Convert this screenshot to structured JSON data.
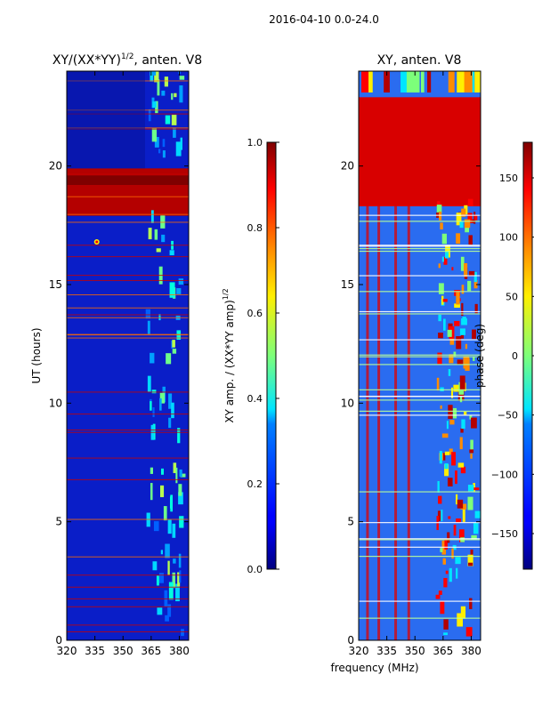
{
  "figure": {
    "suptitle": "2016-04-10 0.0-24.0",
    "shared_xlabel": "frequency (MHz)"
  },
  "chart_data": [
    {
      "type": "heatmap",
      "title_main": "XY/(XX*YY)",
      "title_exp": "1/2",
      "title_suffix": ", anten. V8",
      "ylabel": "UT (hours)",
      "xlim": [
        320,
        385
      ],
      "ylim": [
        0,
        24
      ],
      "xticks": [
        320,
        335,
        350,
        365,
        380
      ],
      "xtick_labels": [
        "320",
        "335",
        "350",
        "365",
        "380"
      ],
      "yticks": [
        0,
        5,
        10,
        15,
        20
      ],
      "ytick_labels": [
        "0",
        "5",
        "10",
        "15",
        "20"
      ],
      "colormap": "jet",
      "background_color": "#0a1ec8",
      "colorbar": {
        "label_main": "XY amp. / (XX*YY amp)",
        "label_exp": "1/2",
        "range": [
          0.0,
          1.0
        ],
        "ticks": [
          0.0,
          0.2,
          0.4,
          0.6,
          0.8,
          1.0
        ],
        "tick_labels": [
          "0.0",
          "0.2",
          "0.4",
          "0.6",
          "0.8",
          "1.0"
        ]
      }
    },
    {
      "type": "heatmap",
      "title_main": "XY, anten. V8",
      "ylabel": "phase (deg)",
      "xlim": [
        320,
        385
      ],
      "ylim": [
        0,
        24
      ],
      "xticks": [
        320,
        335,
        350,
        365,
        380
      ],
      "xtick_labels": [
        "320",
        "335",
        "350",
        "365",
        "380"
      ],
      "yticks": [
        0,
        5,
        10,
        15,
        20
      ],
      "ytick_labels": [
        "0",
        "5",
        "10",
        "15",
        "20"
      ],
      "colormap": "jet",
      "background_color": "#2a6cf0",
      "colorbar": {
        "range": [
          -180,
          180
        ],
        "ticks": [
          -150,
          -100,
          -50,
          0,
          50,
          100,
          150
        ],
        "tick_labels": [
          "−150",
          "−100",
          "−50",
          "0",
          "50",
          "100",
          "150"
        ]
      }
    }
  ]
}
